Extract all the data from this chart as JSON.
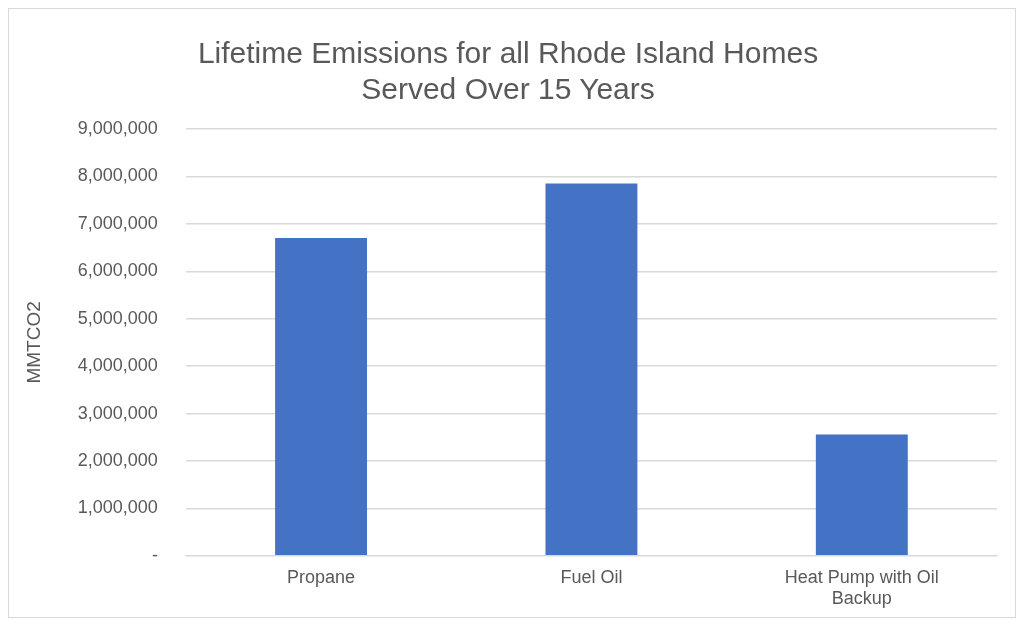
{
  "chart_data": {
    "type": "bar",
    "title": "Lifetime Emissions for all Rhode Island Homes\nServed Over 15 Years",
    "ylabel": "MMTCO2",
    "categories": [
      "Propane",
      "Fuel Oil",
      "Heat Pump with Oil Backup"
    ],
    "values": [
      6700000,
      7850000,
      2560000
    ],
    "color": "#4472c4",
    "ylim": [
      0,
      9000000
    ],
    "yticks": [
      {
        "value": 0,
        "label": "-"
      },
      {
        "value": 1000000,
        "label": "1,000,000"
      },
      {
        "value": 2000000,
        "label": "2,000,000"
      },
      {
        "value": 3000000,
        "label": "3,000,000"
      },
      {
        "value": 4000000,
        "label": "4,000,000"
      },
      {
        "value": 5000000,
        "label": "5,000,000"
      },
      {
        "value": 6000000,
        "label": "6,000,000"
      },
      {
        "value": 7000000,
        "label": "7,000,000"
      },
      {
        "value": 8000000,
        "label": "8,000,000"
      },
      {
        "value": 9000000,
        "label": "9,000,000"
      }
    ],
    "grid": "y",
    "legend": false
  }
}
